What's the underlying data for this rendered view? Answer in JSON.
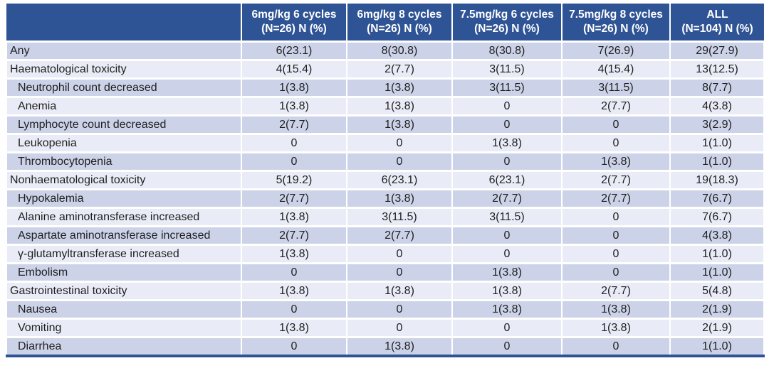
{
  "colors": {
    "header_bg": "#2f5496",
    "header_text": "#ffffff",
    "band_dark": "#ccd3e8",
    "band_light": "#e9ecf6",
    "grid": "#ffffff",
    "body_text": "#1f1f1f",
    "bottom_border": "#2f5496"
  },
  "chart_data": {
    "type": "table",
    "title": "",
    "columns": [
      {
        "line1": "",
        "line2": ""
      },
      {
        "line1": "6mg/kg 6 cycles",
        "line2": "(N=26) N (%)"
      },
      {
        "line1": "6mg/kg 8 cycles",
        "line2": "(N=26) N (%)"
      },
      {
        "line1": "7.5mg/kg 6 cycles",
        "line2": "(N=26) N (%)"
      },
      {
        "line1": "7.5mg/kg 8 cycles",
        "line2": "(N=26) N (%)"
      },
      {
        "line1": "ALL",
        "line2": "(N=104) N (%)"
      }
    ],
    "rows": [
      {
        "label": "Any",
        "indent": false,
        "values": [
          "6(23.1)",
          "8(30.8)",
          "8(30.8)",
          "7(26.9)",
          "29(27.9)"
        ]
      },
      {
        "label": "Haematological toxicity",
        "indent": false,
        "values": [
          "4(15.4)",
          "2(7.7)",
          "3(11.5)",
          "4(15.4)",
          "13(12.5)"
        ]
      },
      {
        "label": "Neutrophil count decreased",
        "indent": true,
        "values": [
          "1(3.8)",
          "1(3.8)",
          "3(11.5)",
          "3(11.5)",
          "8(7.7)"
        ]
      },
      {
        "label": "Anemia",
        "indent": true,
        "values": [
          "1(3.8)",
          "1(3.8)",
          "0",
          "2(7.7)",
          "4(3.8)"
        ]
      },
      {
        "label": "Lymphocyte count decreased",
        "indent": true,
        "values": [
          "2(7.7)",
          "1(3.8)",
          "0",
          "0",
          "3(2.9)"
        ]
      },
      {
        "label": "Leukopenia",
        "indent": true,
        "values": [
          "0",
          "0",
          "1(3.8)",
          "0",
          "1(1.0)"
        ]
      },
      {
        "label": "Thrombocytopenia",
        "indent": true,
        "values": [
          "0",
          "0",
          "0",
          "1(3.8)",
          "1(1.0)"
        ]
      },
      {
        "label": "Nonhaematological toxicity",
        "indent": false,
        "values": [
          "5(19.2)",
          "6(23.1)",
          "6(23.1)",
          "2(7.7)",
          "19(18.3)"
        ]
      },
      {
        "label": "Hypokalemia",
        "indent": true,
        "values": [
          "2(7.7)",
          "1(3.8)",
          "2(7.7)",
          "2(7.7)",
          "7(6.7)"
        ]
      },
      {
        "label": "Alanine aminotransferase increased",
        "indent": true,
        "values": [
          "1(3.8)",
          "3(11.5)",
          "3(11.5)",
          "0",
          "7(6.7)"
        ]
      },
      {
        "label": "Aspartate aminotransferase increased",
        "indent": true,
        "values": [
          "2(7.7)",
          "2(7.7)",
          "0",
          "0",
          "4(3.8)"
        ]
      },
      {
        "label": "γ-glutamyltransferase increased",
        "indent": true,
        "values": [
          "1(3.8)",
          "0",
          "0",
          "0",
          "1(1.0)"
        ]
      },
      {
        "label": "Embolism",
        "indent": true,
        "values": [
          "0",
          "0",
          "1(3.8)",
          "0",
          "1(1.0)"
        ]
      },
      {
        "label": "Gastrointestinal toxicity",
        "indent": false,
        "values": [
          "1(3.8)",
          "1(3.8)",
          "1(3.8)",
          "2(7.7)",
          "5(4.8)"
        ]
      },
      {
        "label": "Nausea",
        "indent": true,
        "values": [
          "0",
          "0",
          "1(3.8)",
          "1(3.8)",
          "2(1.9)"
        ]
      },
      {
        "label": "Vomiting",
        "indent": true,
        "values": [
          "1(3.8)",
          "0",
          "0",
          "1(3.8)",
          "2(1.9)"
        ]
      },
      {
        "label": "Diarrhea",
        "indent": true,
        "values": [
          "0",
          "1(3.8)",
          "0",
          "0",
          "1(1.0)"
        ]
      }
    ]
  }
}
